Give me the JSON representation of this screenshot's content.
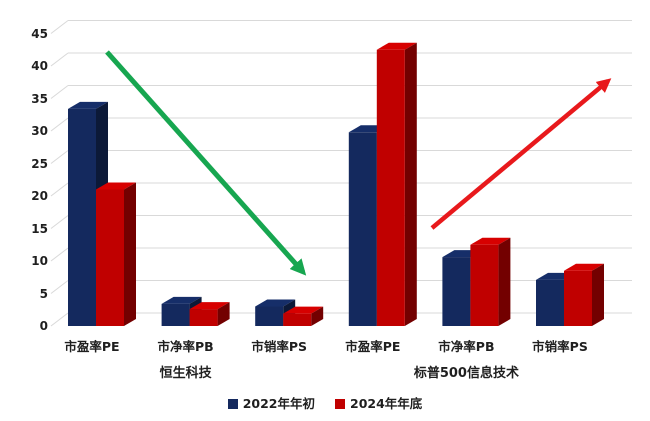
{
  "chart_data": {
    "type": "bar",
    "subtype": "3d-clustered-column",
    "title": "",
    "xlabel": "",
    "ylabel": "",
    "y_axis": {
      "min": 0,
      "max": 45,
      "step": 5
    },
    "grid": true,
    "legend_position": "bottom",
    "groups": [
      {
        "label": "恒生科技",
        "categories": [
          "市盈率PE",
          "市净率PB",
          "市销率PS"
        ]
      },
      {
        "label": "标普500信息技术",
        "categories": [
          "市盈率PE",
          "市净率PB",
          "市销率PS"
        ]
      }
    ],
    "series": [
      {
        "name": "2022年年初",
        "color": "#14295E",
        "values": [
          33.4,
          3.4,
          3.0,
          29.8,
          10.6,
          7.1
        ]
      },
      {
        "name": "2024年年底",
        "color": "#C00000",
        "values": [
          21.0,
          2.6,
          1.9,
          42.5,
          12.5,
          8.5
        ]
      }
    ],
    "annotations": [
      {
        "name": "hang-seng-decline-arrow",
        "shape": "arrow",
        "direction": "down-right",
        "color": "#17A650"
      },
      {
        "name": "sp500-rise-arrow",
        "shape": "arrow",
        "direction": "up-right",
        "color": "#E8191C"
      }
    ],
    "colors": {
      "gridline": "#D9D9D9",
      "text": "#1F1F1F",
      "background": "#FFFFFF"
    }
  }
}
